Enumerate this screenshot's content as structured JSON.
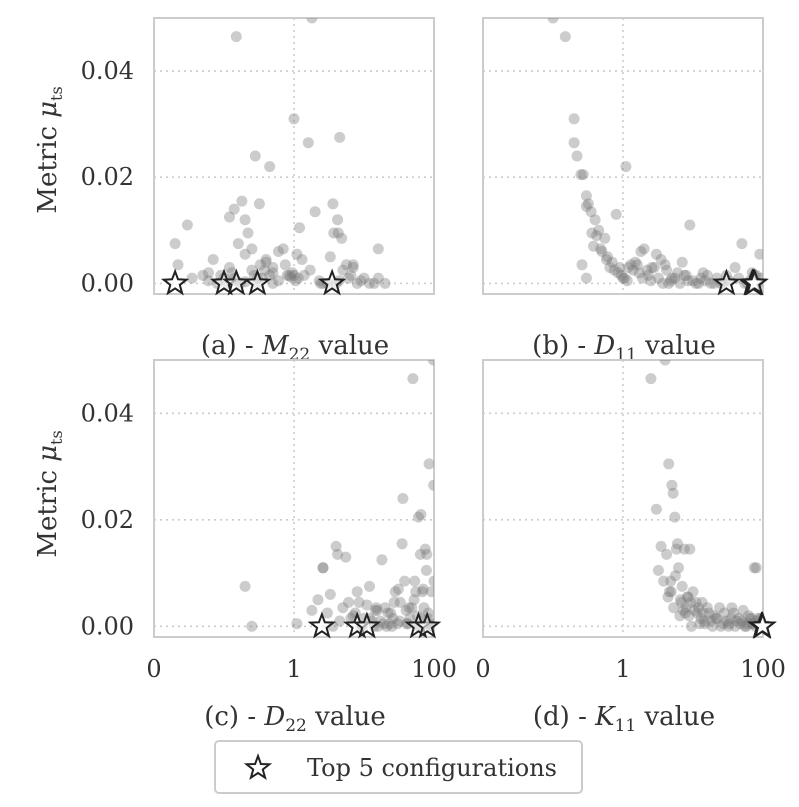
{
  "figure": {
    "ylabel_text": "Metric",
    "ylabel_symbol": "μ",
    "ylabel_sub": "ts",
    "legend_label": "Top 5 configurations",
    "legend_marker": "star-icon"
  },
  "colors": {
    "points": "#7a7a7a",
    "star_edge": "#222222",
    "frame": "#cccccc",
    "text": "#333333"
  },
  "chart_data": [
    {
      "type": "scatter",
      "panel": "a",
      "caption_prefix": "(a) - ",
      "caption_sym": "M",
      "caption_sub": "22",
      "caption_suffix": " value",
      "xscale": "log",
      "xlim": [
        0.01,
        100
      ],
      "ylim": [
        -0.002,
        0.05
      ],
      "yticks": [
        0.0,
        0.02,
        0.04
      ],
      "yticklabels": [
        "0.00",
        "0.02",
        "0.04"
      ],
      "xticks": [],
      "xticklabels": [],
      "grid": true,
      "x": [
        0.02,
        0.022,
        0.03,
        0.035,
        0.05,
        0.06,
        0.07,
        0.08,
        0.1,
        0.12,
        0.12,
        0.13,
        0.14,
        0.15,
        0.16,
        0.17,
        0.18,
        0.2,
        0.22,
        0.25,
        0.28,
        0.3,
        0.32,
        0.35,
        0.4,
        0.45,
        0.5,
        0.6,
        0.7,
        0.8,
        0.9,
        1.0,
        1.1,
        1.2,
        1.4,
        1.6,
        1.8,
        2.0,
        2.3,
        2.6,
        3.0,
        3.3,
        3.6,
        4.0,
        4.5,
        5.0,
        6.0,
        7.0,
        8.0,
        10,
        12,
        14,
        16,
        20,
        0.11,
        0.14,
        0.2,
        0.33,
        0.38,
        0.27,
        0.95,
        1.3,
        0.75,
        4.3,
        4.8,
        3.7,
        4.2,
        5.6,
        16,
        1.0,
        1.05,
        0.5,
        1.15,
        0.6,
        0.09,
        0.15,
        0.3,
        0.5,
        2.4,
        6.5,
        9.0,
        1.7,
        0.4,
        0.06,
        0.25,
        0.85,
        4.4,
        7.0,
        0.2,
        0.45
      ],
      "y": [
        0.0075,
        0.0035,
        0.011,
        0.001,
        0.0015,
        0.002,
        0.0045,
        0.0,
        0.001,
        0.003,
        0.0125,
        0.002,
        0.014,
        0.0465,
        0.0075,
        0.0,
        0.0155,
        0.012,
        0.0095,
        0.0065,
        0.024,
        0.0,
        0.015,
        0.001,
        0.0045,
        0.022,
        0.003,
        0.0005,
        0.0065,
        0.0015,
        0.0012,
        0.031,
        0.0055,
        0.0105,
        0.0015,
        0.0265,
        0.05,
        0.0135,
        0.0005,
        0.0,
        0.0,
        0.005,
        0.015,
        0.0,
        0.0275,
        0.0025,
        0.001,
        0.0035,
        0.0,
        0.001,
        0.0,
        0.0,
        0.0065,
        0.0,
        0.0,
        0.001,
        0.0055,
        0.0035,
        0.0025,
        0.0015,
        0.002,
        0.0045,
        0.0035,
        0.0095,
        0.0085,
        0.0095,
        0.012,
        0.0035,
        0.001,
        0.0015,
        0.0005,
        0.002,
        0.001,
        0.006,
        0.0015,
        0.0005,
        0.001,
        0.0,
        0.0,
        0.0015,
        0.0005,
        0.0025,
        0.004,
        0.0005,
        0.0025,
        0.0015,
        0.0005,
        0.003,
        0.0003,
        0.0015
      ],
      "top5_x": [
        0.02,
        0.1,
        0.15,
        0.3,
        3.5
      ],
      "top5_y": [
        0.0,
        0.0,
        0.0,
        0.0,
        0.0
      ]
    },
    {
      "type": "scatter",
      "panel": "b",
      "caption_prefix": "(b) - ",
      "caption_sym": "D",
      "caption_sub": "11",
      "caption_suffix": " value",
      "xscale": "log",
      "xlim": [
        0.01,
        100
      ],
      "ylim": [
        -0.002,
        0.05
      ],
      "yticks": [
        0.0,
        0.02,
        0.04
      ],
      "yticklabels": [
        "",
        "",
        ""
      ],
      "xticks": [],
      "xticklabels": [],
      "grid": true,
      "x": [
        0.1,
        0.15,
        0.2,
        0.2,
        0.22,
        0.25,
        0.27,
        0.3,
        0.3,
        0.32,
        0.35,
        0.38,
        0.4,
        0.45,
        0.5,
        0.55,
        0.6,
        0.7,
        0.8,
        0.9,
        1.0,
        1.1,
        1.2,
        1.4,
        1.6,
        1.8,
        2.0,
        2.3,
        2.6,
        3.0,
        3.5,
        4.0,
        4.5,
        5,
        6,
        7,
        8,
        9,
        10,
        12,
        14,
        16,
        20,
        25,
        30,
        40,
        50,
        60,
        70,
        80,
        90,
        0.36,
        0.42,
        0.48,
        0.58,
        0.65,
        0.75,
        0.85,
        0.95,
        1.05,
        1.3,
        1.5,
        1.7,
        1.9,
        2.2,
        2.5,
        2.8,
        3.2,
        3.7,
        4.2,
        4.8,
        5.5,
        6.5,
        7.5,
        8.5,
        11,
        13,
        15,
        18,
        22,
        27,
        33,
        45,
        55,
        65,
        75,
        85,
        95,
        1.15,
        0.26,
        0.3
      ],
      "y": [
        0.05,
        0.0465,
        0.031,
        0.0265,
        0.024,
        0.0205,
        0.0205,
        0.0165,
        0.0145,
        0.015,
        0.0135,
        0.007,
        0.012,
        0.01,
        0.006,
        0.0085,
        0.005,
        0.004,
        0.013,
        0.003,
        0.001,
        0.022,
        0.003,
        0.0025,
        0.0035,
        0.006,
        0.0065,
        0.0015,
        0.003,
        0.0055,
        0.0045,
        0.0035,
        0.0,
        0.001,
        0.002,
        0.004,
        0.0015,
        0.011,
        0.0005,
        0.0,
        0.002,
        0.0015,
        0.0,
        0.0,
        0.0015,
        0.003,
        0.0075,
        0.0,
        0.002,
        0.0015,
        0.0055,
        0.0095,
        0.009,
        0.0065,
        0.0045,
        0.003,
        0.0025,
        0.002,
        0.0015,
        0.001,
        0.0035,
        0.004,
        0.002,
        0.001,
        0.0025,
        0.0005,
        0.003,
        0.001,
        0.0,
        0.0025,
        0.0005,
        0.001,
        0.0,
        0.0015,
        0.0005,
        0.0,
        0.001,
        0.0005,
        0.0,
        0.001,
        0.0,
        0.0005,
        0.001,
        0.0,
        0.0005,
        0.0015,
        0.0,
        0.001,
        0.0005,
        0.0035,
        0.001
      ],
      "top5_x": [
        30,
        70,
        72,
        74,
        76
      ],
      "top5_y": [
        0.0,
        0.0,
        0.0,
        0.0,
        0.0
      ]
    },
    {
      "type": "scatter",
      "panel": "c",
      "caption_prefix": "(c) - ",
      "caption_sym": "D",
      "caption_sub": "22",
      "caption_suffix": " value",
      "xscale": "log",
      "xlim": [
        0.01,
        100
      ],
      "ylim": [
        -0.002,
        0.05
      ],
      "yticks": [
        0.0,
        0.02,
        0.04
      ],
      "yticklabels": [
        "0.00",
        "0.02",
        "0.04"
      ],
      "xticks": [
        0.01,
        1,
        100
      ],
      "xticklabels": [
        "0",
        "1",
        "100"
      ],
      "grid": true,
      "x": [
        0.2,
        0.25,
        1.1,
        1.8,
        2.2,
        2.6,
        2.6,
        3.0,
        3.3,
        3.6,
        4.0,
        4.5,
        5.0,
        5.5,
        6.0,
        7.0,
        8.0,
        9.0,
        10,
        11,
        12,
        13,
        14,
        15,
        16,
        18,
        20,
        22,
        25,
        28,
        30,
        33,
        36,
        40,
        45,
        50,
        55,
        60,
        65,
        70,
        75,
        80,
        85,
        90,
        95,
        4.2,
        6.5,
        7.5,
        9.5,
        12,
        14.5,
        17,
        19,
        21,
        24,
        27,
        32,
        35,
        38,
        42,
        48,
        52,
        58,
        62,
        68,
        72,
        78,
        82,
        88,
        92,
        98,
        15.5,
        23,
        31,
        44,
        57,
        66,
        79,
        83,
        99,
        100,
        8.5,
        26,
        41,
        53,
        64
      ],
      "y": [
        0.0075,
        0.0,
        0.0005,
        0.003,
        0.005,
        0.011,
        0.011,
        0.0025,
        0.006,
        0.0,
        0.015,
        0.001,
        0.0035,
        0.013,
        0.0045,
        0.002,
        0.0065,
        0.0,
        0.0015,
        0.004,
        0.0075,
        0.001,
        0.0,
        0.0035,
        0.0,
        0.0125,
        0.0035,
        0.0025,
        0.0,
        0.0065,
        0.0005,
        0.0045,
        0.024,
        0.003,
        0.0015,
        0.0465,
        0.0065,
        0.0205,
        0.021,
        0.007,
        0.0145,
        0.0005,
        0.0305,
        0.0005,
        0.0,
        0.0135,
        0.0015,
        0.0025,
        0.0,
        0.0015,
        0.003,
        0.001,
        0.0005,
        0.0,
        0.0025,
        0.0045,
        0.001,
        0.0155,
        0.0085,
        0.0005,
        0.0035,
        0.005,
        0.002,
        0.0,
        0.0065,
        0.0035,
        0.0105,
        0.0015,
        0.0,
        0.0065,
        0.05,
        0.003,
        0.0005,
        0.007,
        0.0035,
        0.0,
        0.0015,
        0.0135,
        0.0025,
        0.0265,
        0.0085,
        0.0045,
        0.0015,
        0.0005,
        0.0085,
        0.0135
      ],
      "top5_x": [
        2.5,
        8.0,
        11,
        60,
        80
      ],
      "top5_y": [
        0.0,
        0.0,
        0.0,
        0.0,
        0.0
      ]
    },
    {
      "type": "scatter",
      "panel": "d",
      "caption_prefix": "(d) - ",
      "caption_sym": "K",
      "caption_sub": "11",
      "caption_suffix": " value",
      "xscale": "log",
      "xlim": [
        0.01,
        100
      ],
      "ylim": [
        -0.002,
        0.05
      ],
      "yticks": [
        0.0,
        0.02,
        0.04
      ],
      "yticklabels": [
        "",
        "",
        ""
      ],
      "xticks": [
        0.01,
        1,
        100
      ],
      "xticklabels": [
        "0",
        "1",
        "100"
      ],
      "grid": true,
      "x": [
        2.5,
        3.0,
        3.5,
        4.0,
        4.2,
        4.5,
        4.6,
        4.8,
        5.0,
        5.2,
        5.5,
        5.8,
        6.0,
        6.5,
        7.0,
        7.5,
        8.0,
        8.5,
        9.0,
        9.5,
        10,
        11,
        12,
        13,
        14,
        15,
        16,
        18,
        20,
        22,
        25,
        28,
        30,
        33,
        36,
        40,
        45,
        50,
        55,
        60,
        65,
        70,
        75,
        80,
        85,
        90,
        95,
        100,
        3.2,
        3.8,
        4.4,
        5.3,
        6.2,
        6.8,
        7.3,
        7.8,
        8.3,
        8.8,
        9.3,
        10.5,
        11.5,
        12.5,
        13.5,
        14.5,
        17,
        19,
        21,
        24,
        27,
        32,
        35,
        38,
        42,
        48,
        52,
        58,
        62,
        68,
        72,
        78,
        82,
        88,
        92,
        98,
        4.9,
        5.6,
        6.6
      ],
      "y": [
        0.0465,
        0.022,
        0.015,
        0.05,
        0.0135,
        0.0305,
        0.0065,
        0.0085,
        0.0265,
        0.025,
        0.0205,
        0.0145,
        0.0155,
        0.002,
        0.0075,
        0.0145,
        0.0035,
        0.0055,
        0.0145,
        0.0,
        0.0065,
        0.0045,
        0.0035,
        0.0015,
        0.0025,
        0.0005,
        0.0035,
        0.001,
        0.002,
        0.0015,
        0.0,
        0.0025,
        0.001,
        0.0005,
        0.0035,
        0.0,
        0.0015,
        0.001,
        0.0,
        0.0005,
        0.0015,
        0.0005,
        0.011,
        0.011,
        0.0015,
        0.0,
        0.0005,
        0.0015,
        0.0105,
        0.0085,
        0.0055,
        0.0035,
        0.011,
        0.0045,
        0.003,
        0.0025,
        0.0055,
        0.002,
        0.0045,
        0.003,
        0.0025,
        0.0005,
        0.0045,
        0.001,
        0.0025,
        0.0,
        0.0015,
        0.0035,
        0.0005,
        0.0,
        0.0015,
        0.0025,
        0.001,
        0.0005,
        0.003,
        0.0,
        0.002,
        0.0015,
        0.0005,
        0.0,
        0.001,
        0.0005,
        0.0015,
        0.0005,
        0.0065,
        0.0095,
        0.005
      ],
      "top5_x": [
        95,
        96,
        97,
        98,
        99
      ],
      "top5_y": [
        0.0,
        0.0,
        0.0,
        0.0,
        0.0
      ]
    }
  ]
}
